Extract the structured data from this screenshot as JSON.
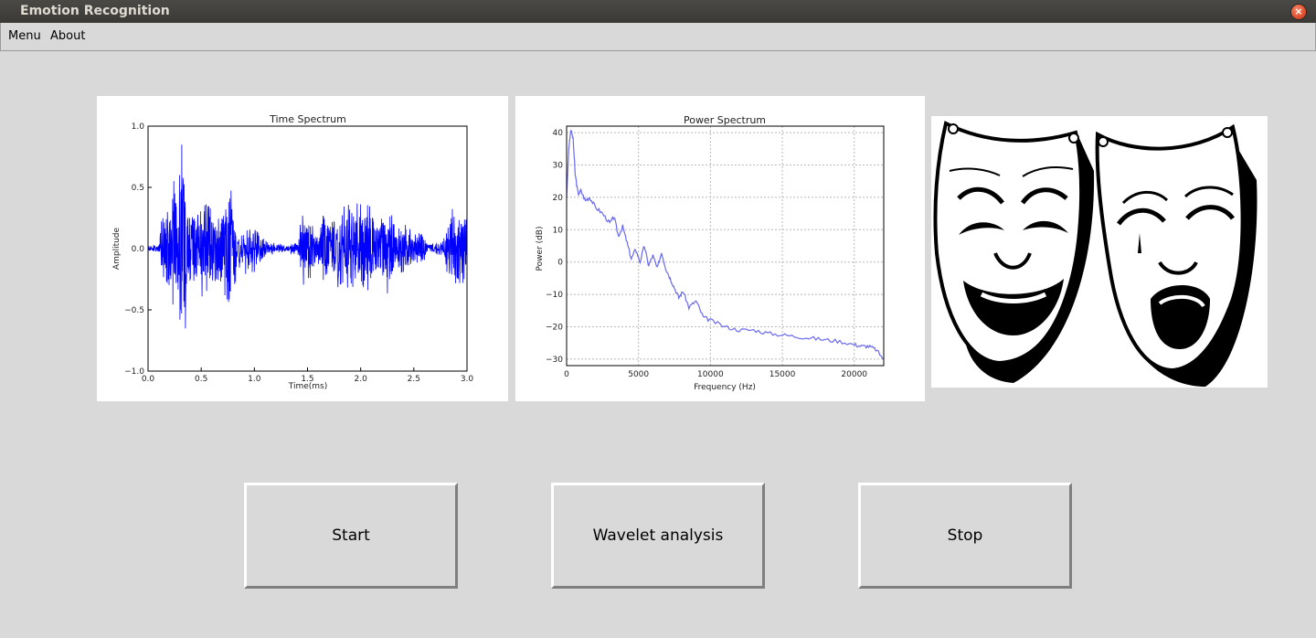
{
  "window": {
    "title": "Emotion Recognition"
  },
  "menu": {
    "items": [
      "Menu",
      "About"
    ]
  },
  "buttons": {
    "start": "Start",
    "wavelet": "Wavelet analysis",
    "stop": "Stop"
  },
  "colors": {
    "series": "#0000ff",
    "power_series": "#6a6af0"
  },
  "icons": {
    "mask": "comedy-tragedy-masks-icon",
    "close": "close-icon"
  },
  "chart_data": [
    {
      "type": "line",
      "title": "Time Spectrum",
      "xlabel": "Time(ms)",
      "ylabel": "Amplitude",
      "xlim": [
        0.0,
        3.0
      ],
      "ylim": [
        -1.0,
        1.0
      ],
      "xticks": [
        "0.0",
        "0.5",
        "1.0",
        "1.5",
        "2.0",
        "2.5",
        "3.0"
      ],
      "yticks": [
        "1.0",
        "0.5",
        "0.0",
        "−0.5",
        "−1.0"
      ],
      "grid": false,
      "envelope": {
        "x": [
          0.0,
          0.1,
          0.13,
          0.2,
          0.26,
          0.3,
          0.33,
          0.38,
          0.45,
          0.55,
          0.62,
          0.7,
          0.78,
          0.85,
          0.95,
          1.03,
          1.1,
          1.18,
          1.28,
          1.4,
          1.46,
          1.52,
          1.6,
          1.65,
          1.72,
          1.8,
          1.88,
          1.95,
          2.03,
          2.1,
          2.17,
          2.25,
          2.33,
          2.4,
          2.5,
          2.58,
          2.62,
          2.72,
          2.78,
          2.85,
          2.92,
          3.0
        ],
        "amp": [
          0.02,
          0.03,
          0.3,
          0.4,
          0.68,
          0.7,
          0.98,
          0.4,
          0.35,
          0.5,
          0.3,
          0.4,
          0.55,
          0.15,
          0.25,
          0.2,
          0.08,
          0.05,
          0.03,
          0.05,
          0.35,
          0.25,
          0.12,
          0.4,
          0.18,
          0.48,
          0.4,
          0.4,
          0.4,
          0.45,
          0.25,
          0.4,
          0.2,
          0.25,
          0.12,
          0.2,
          0.05,
          0.05,
          0.12,
          0.38,
          0.35,
          0.32
        ]
      }
    },
    {
      "type": "line",
      "title": "Power Spectrum",
      "xlabel": "Frequency (Hz)",
      "ylabel": "Power (dB)",
      "xlim": [
        0,
        22050
      ],
      "ylim": [
        -32,
        42
      ],
      "xticks": [
        "0",
        "5000",
        "10000",
        "15000",
        "20000"
      ],
      "yticks": [
        "40",
        "30",
        "20",
        "10",
        "0",
        "−10",
        "−20",
        "−30"
      ],
      "grid": true,
      "x": [
        0,
        150,
        300,
        450,
        600,
        800,
        1000,
        1300,
        1600,
        2000,
        2500,
        3000,
        3300,
        3600,
        3900,
        4200,
        4500,
        4800,
        5100,
        5400,
        5700,
        6000,
        6300,
        6600,
        6900,
        7200,
        7500,
        7800,
        8100,
        8500,
        9000,
        9500,
        10000,
        11000,
        12000,
        13000,
        14000,
        15000,
        16000,
        17000,
        18000,
        19000,
        20000,
        20500,
        21000,
        21500,
        22050
      ],
      "y": [
        20,
        35,
        41,
        38,
        27,
        21,
        22,
        19,
        20,
        17,
        15,
        12,
        14,
        8,
        11,
        6,
        1,
        4,
        0,
        5,
        -1,
        2,
        -2,
        3,
        -2,
        -5,
        -8,
        -11,
        -9,
        -14,
        -12,
        -17,
        -18,
        -20,
        -21,
        -21,
        -22,
        -22.5,
        -23,
        -23.5,
        -24,
        -24.5,
        -25.5,
        -26,
        -26,
        -27,
        -30
      ]
    }
  ]
}
